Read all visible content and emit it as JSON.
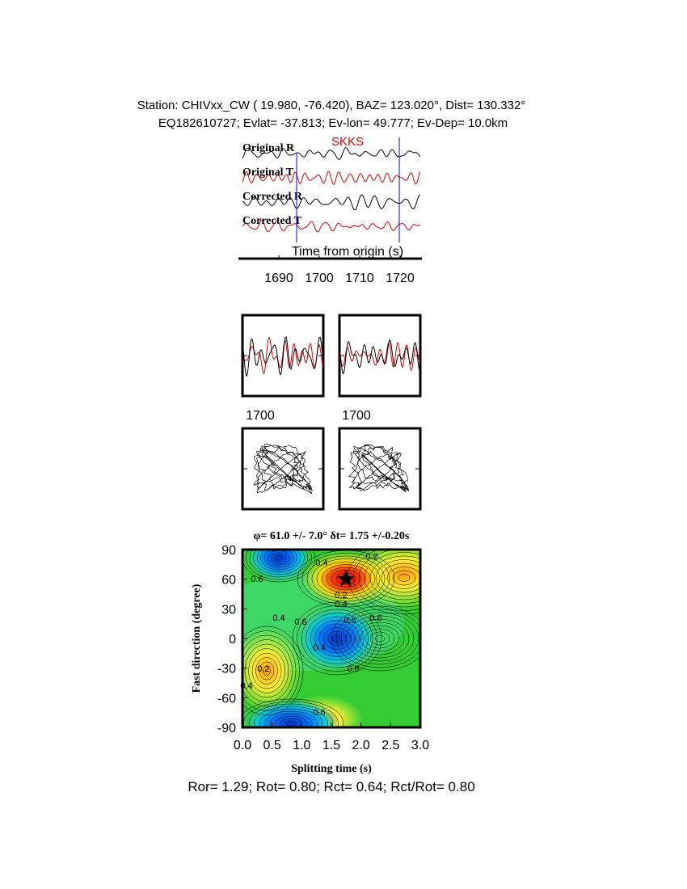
{
  "header": {
    "line1": "Station: CHIVxx_CW (  19.980,  -76.420), BAZ=  123.020°, Dist=  130.332°",
    "line2": "EQ182610727; Evlat= -37.813; Ev-lon=  49.777; Ev-Dep= 10.0km"
  },
  "traces": {
    "labels": [
      "Original R",
      "Original T",
      "Corrected R",
      "Corrected T"
    ],
    "phase": "SKKS",
    "xlabel": "Time from origin (s)",
    "xlim": [
      1681,
      1725
    ],
    "xticks": [
      1690,
      1700,
      1710,
      1720
    ]
  },
  "components": {
    "tick_labels": [
      "1700",
      "1700"
    ]
  },
  "splitting": {
    "title": "φ= 61.0 +/- 7.0° δt= 1.75 +/-0.20s",
    "xlabel": "Splitting time (s)",
    "ylabel": "Fast direction (degree)",
    "xlim": [
      0,
      3
    ],
    "ylim": [
      -90,
      90
    ],
    "xticks": [
      {
        "value": 0,
        "label": "0.0"
      },
      {
        "value": 0.5,
        "label": "0.5"
      },
      {
        "value": 1,
        "label": "1.0"
      },
      {
        "value": 1.5,
        "label": "1.5"
      },
      {
        "value": 2,
        "label": "2.0"
      },
      {
        "value": 2.5,
        "label": "2.5"
      },
      {
        "value": 3,
        "label": "3.0"
      }
    ],
    "yticks": [
      -90,
      -60,
      -30,
      0,
      30,
      60,
      90
    ],
    "contour_labels": [
      "0.2",
      "0.4",
      "0.6",
      "0.2",
      "0.4",
      "0.6",
      "0.4",
      "0.6",
      "0.6",
      "0.4",
      "0.6",
      "0.2",
      "0.4",
      "0.6"
    ]
  },
  "footer": "Ror= 1.29; Rot= 0.80; Rct= 0.64; Rct/Rot= 0.80"
}
